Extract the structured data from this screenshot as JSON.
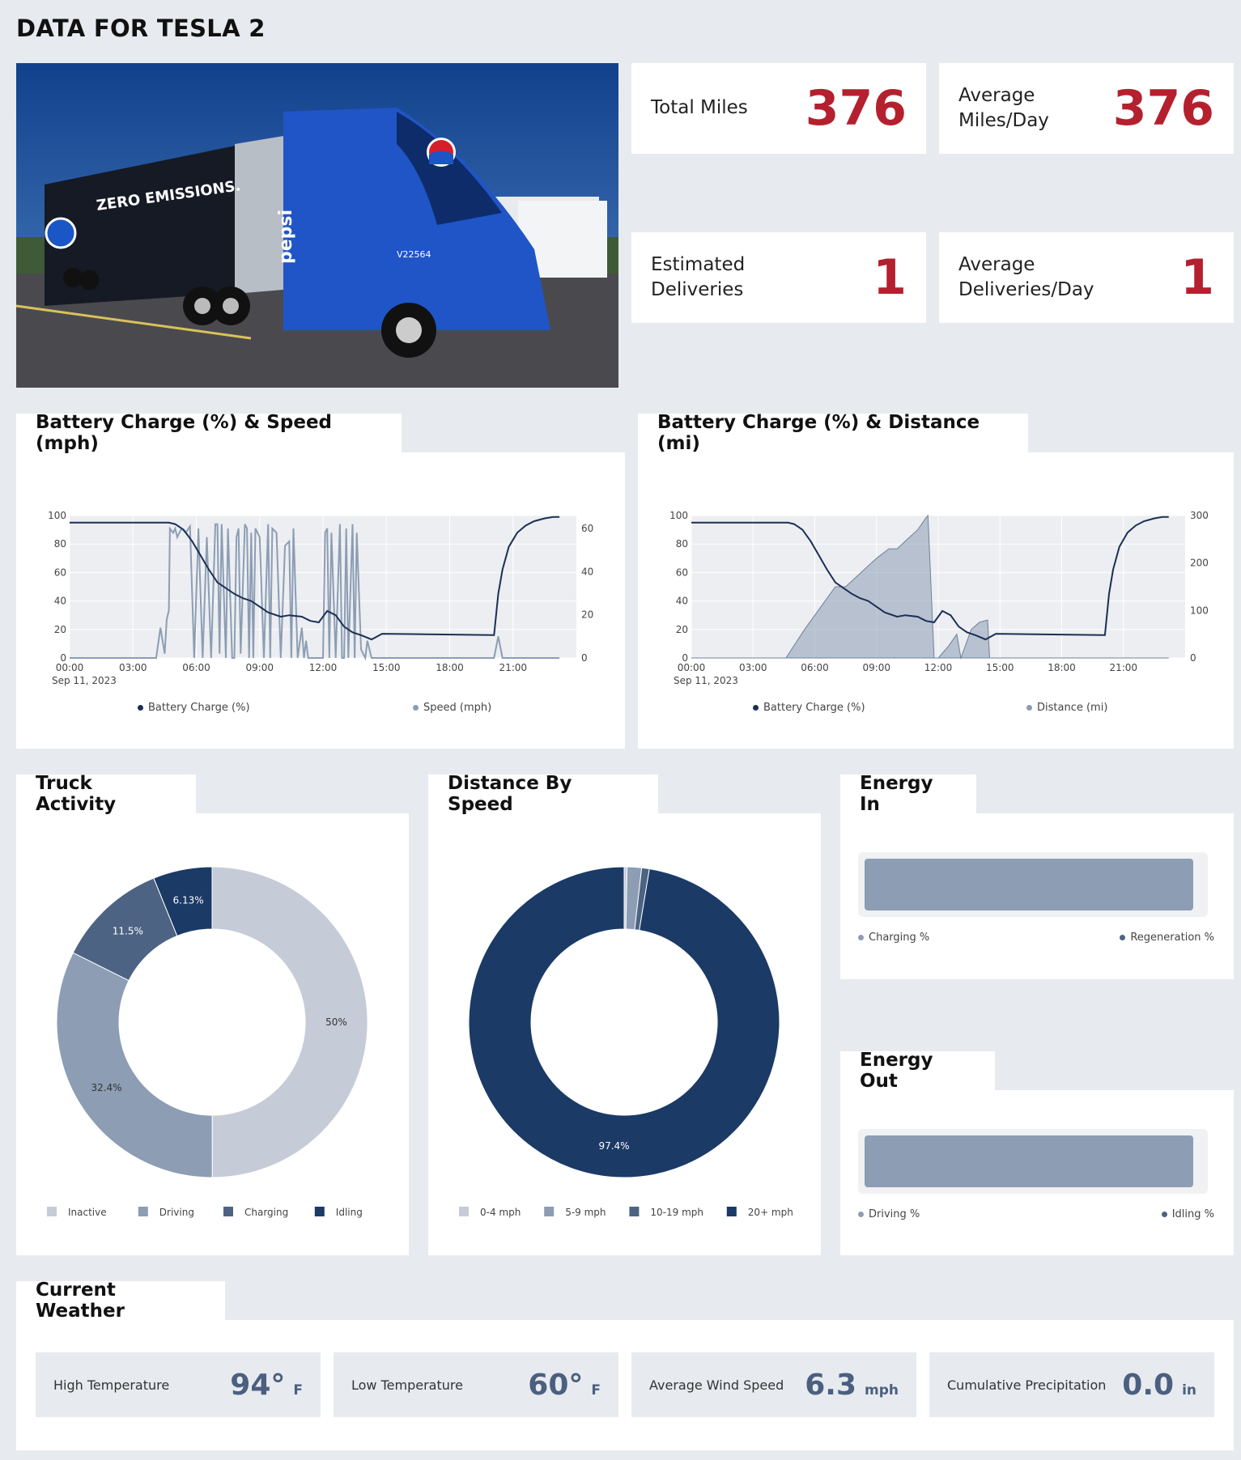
{
  "page": {
    "title": "DATA FOR TESLA 2"
  },
  "stats": {
    "total_miles": {
      "label": "Total Miles",
      "value": "376"
    },
    "avg_miles_day": {
      "label": "Average Miles/Day",
      "value": "376"
    },
    "est_deliveries": {
      "label": "Estimated Deliveries",
      "value": "1"
    },
    "avg_deliveries_day": {
      "label": "Average Deliveries/Day",
      "value": "1"
    }
  },
  "photo": {
    "trailer_text": "ZERO EMISSIONS.",
    "cab_text": "pepsi",
    "unit_number": "V22564"
  },
  "charts": {
    "speed": {
      "title": "Battery Charge (%) & Speed (mph)",
      "legend_a": "Battery Charge (%)",
      "legend_b": "Speed (mph)",
      "date_label": "Sep 11, 2023"
    },
    "distance": {
      "title": "Battery Charge (%) & Distance (mi)",
      "legend_a": "Battery Charge (%)",
      "legend_b": "Distance (mi)",
      "date_label": "Sep 11, 2023"
    },
    "activity": {
      "title": "Truck Activity",
      "legend": [
        "Inactive",
        "Driving",
        "Charging",
        "Idling"
      ]
    },
    "speed_dist": {
      "title": "Distance By Speed",
      "legend": [
        "0-4 mph",
        "5-9 mph",
        "10-19 mph",
        "20+ mph"
      ]
    }
  },
  "energy_in": {
    "title": "Energy In",
    "left": "Charging %",
    "right": "Regeneration %",
    "fill": 0.98
  },
  "energy_out": {
    "title": "Energy Out",
    "left": "Driving %",
    "right": "Idling %",
    "fill": 0.98
  },
  "weather": {
    "title": "Current Weather",
    "high": {
      "label": "High Temperature",
      "value": "94°",
      "unit": "F"
    },
    "low": {
      "label": "Low Temperature",
      "value": "60°",
      "unit": "F"
    },
    "wind": {
      "label": "Average Wind Speed",
      "value": "6.3",
      "unit": "mph"
    },
    "precip": {
      "label": "Cumulative Precipitation",
      "value": "0.0",
      "unit": "in"
    }
  },
  "chart_data": [
    {
      "type": "line",
      "title": "Battery Charge (%) & Speed (mph)",
      "x_tick_labels": [
        "00:00",
        "03:00",
        "06:00",
        "09:00",
        "12:00",
        "15:00",
        "18:00",
        "21:00"
      ],
      "y_left_ticks": [
        "0",
        "20",
        "40",
        "60",
        "80",
        "100"
      ],
      "y_right_ticks": [
        "0",
        "20",
        "40",
        "60"
      ],
      "ylim_left": [
        0,
        100
      ],
      "ylim_right": [
        0,
        66
      ],
      "series": [
        {
          "name": "Battery Charge (%)",
          "axis": "left",
          "color": "#1b2f55",
          "x": [
            0,
            4.7,
            5.0,
            5.4,
            5.8,
            6.2,
            6.6,
            7.0,
            7.8,
            8.2,
            8.6,
            9.4,
            10.0,
            10.4,
            11.0,
            11.4,
            11.8,
            12.2,
            12.6,
            13.0,
            13.4,
            13.8,
            14.3,
            14.8,
            20.1,
            20.3,
            20.5,
            20.8,
            21.2,
            21.6,
            22.0,
            22.5,
            22.9,
            23.2
          ],
          "y": [
            95,
            95,
            94,
            90,
            82,
            72,
            62,
            53,
            45,
            42,
            40,
            32,
            29,
            30,
            29,
            26,
            25,
            33,
            30,
            22,
            18,
            16,
            13,
            17,
            16,
            45,
            62,
            78,
            88,
            93,
            96,
            98,
            99,
            99
          ]
        },
        {
          "name": "Speed (mph)",
          "axis": "right",
          "color": "#8c9db4",
          "x": [
            0,
            4.1,
            4.3,
            4.5,
            4.6,
            4.7,
            4.75,
            4.9,
            5.0,
            5.1,
            5.3,
            5.5,
            5.7,
            5.9,
            6.1,
            6.3,
            6.5,
            6.7,
            6.9,
            7.0,
            7.1,
            7.2,
            7.4,
            7.5,
            7.7,
            7.8,
            7.9,
            8.0,
            8.1,
            8.3,
            8.4,
            8.5,
            8.6,
            8.7,
            8.8,
            9.0,
            9.2,
            9.4,
            9.5,
            9.6,
            9.8,
            10.0,
            10.2,
            10.4,
            10.5,
            10.6,
            10.8,
            11.0,
            11.1,
            11.2,
            11.3,
            11.4,
            11.6,
            11.8,
            12.0,
            12.1,
            12.2,
            12.3,
            12.4,
            12.6,
            12.8,
            12.9,
            13.0,
            13.1,
            13.2,
            13.4,
            13.5,
            13.6,
            13.8,
            14.0,
            14.1,
            14.3,
            20.1,
            20.3,
            20.5,
            23.2
          ],
          "y": [
            0,
            0,
            14,
            2,
            18,
            22,
            60,
            58,
            60,
            56,
            60,
            58,
            61,
            0,
            60,
            0,
            56,
            0,
            62,
            62,
            2,
            62,
            0,
            60,
            0,
            0,
            56,
            60,
            2,
            62,
            60,
            0,
            58,
            0,
            60,
            56,
            0,
            62,
            0,
            60,
            58,
            0,
            52,
            54,
            0,
            60,
            0,
            14,
            0,
            8,
            0,
            0,
            0,
            0,
            0,
            58,
            60,
            0,
            58,
            0,
            62,
            0,
            0,
            60,
            0,
            62,
            0,
            58,
            4,
            0,
            8,
            0,
            0,
            10,
            0,
            0
          ]
        }
      ]
    },
    {
      "type": "area",
      "title": "Battery Charge (%) & Distance (mi)",
      "x_tick_labels": [
        "00:00",
        "03:00",
        "06:00",
        "09:00",
        "12:00",
        "15:00",
        "18:00",
        "21:00"
      ],
      "y_left_ticks": [
        "0",
        "20",
        "40",
        "60",
        "80",
        "100"
      ],
      "y_right_ticks": [
        "0",
        "100",
        "200",
        "300"
      ],
      "ylim_left": [
        0,
        100
      ],
      "ylim_right": [
        0,
        300
      ],
      "series": [
        {
          "name": "Battery Charge (%)",
          "axis": "left",
          "color": "#1b2f55",
          "x": [
            0,
            4.7,
            5.0,
            5.4,
            5.8,
            6.2,
            6.6,
            7.0,
            7.8,
            8.2,
            8.6,
            9.4,
            10.0,
            10.4,
            11.0,
            11.4,
            11.8,
            12.2,
            12.6,
            13.0,
            13.4,
            13.8,
            14.3,
            14.8,
            20.1,
            20.3,
            20.5,
            20.8,
            21.2,
            21.6,
            22.0,
            22.5,
            22.9,
            23.2
          ],
          "y": [
            95,
            95,
            94,
            90,
            82,
            72,
            62,
            53,
            45,
            42,
            40,
            32,
            29,
            30,
            29,
            26,
            25,
            33,
            30,
            22,
            18,
            16,
            13,
            17,
            16,
            45,
            62,
            78,
            88,
            93,
            96,
            98,
            99,
            99
          ]
        },
        {
          "name": "Distance (mi)",
          "axis": "right",
          "color": "#8c9db4",
          "x": [
            0,
            4.6,
            5.5,
            6.5,
            7.0,
            7.5,
            8.0,
            8.5,
            9.0,
            9.6,
            10.0,
            10.5,
            11.0,
            11.4,
            11.5,
            11.8,
            12.0,
            12.5,
            12.9,
            13.1,
            13.6,
            14.0,
            14.4,
            14.5,
            23.2
          ],
          "y": [
            0,
            0,
            60,
            120,
            150,
            150,
            170,
            190,
            210,
            230,
            230,
            250,
            270,
            295,
            300,
            0,
            0,
            25,
            50,
            0,
            60,
            75,
            80,
            0,
            0
          ]
        }
      ]
    },
    {
      "type": "pie",
      "title": "Truck Activity",
      "labels": [
        "Inactive",
        "Driving",
        "Charging",
        "Idling"
      ],
      "values": [
        50,
        32.4,
        11.5,
        6.13
      ],
      "value_labels": [
        "50%",
        "32.4%",
        "11.5%",
        "6.13%"
      ],
      "colors": [
        "#c5ccd7",
        "#8c9db4",
        "#4d6383",
        "#1b3a66"
      ]
    },
    {
      "type": "pie",
      "title": "Distance By Speed",
      "labels": [
        "0-4 mph",
        "5-9 mph",
        "10-19 mph",
        "20+ mph"
      ],
      "values": [
        0.3,
        1.5,
        0.8,
        97.4
      ],
      "value_labels": [
        "",
        "",
        "",
        "97.4%"
      ],
      "colors": [
        "#c5ccd7",
        "#8c9db4",
        "#4d6383",
        "#1b3a66"
      ]
    }
  ]
}
